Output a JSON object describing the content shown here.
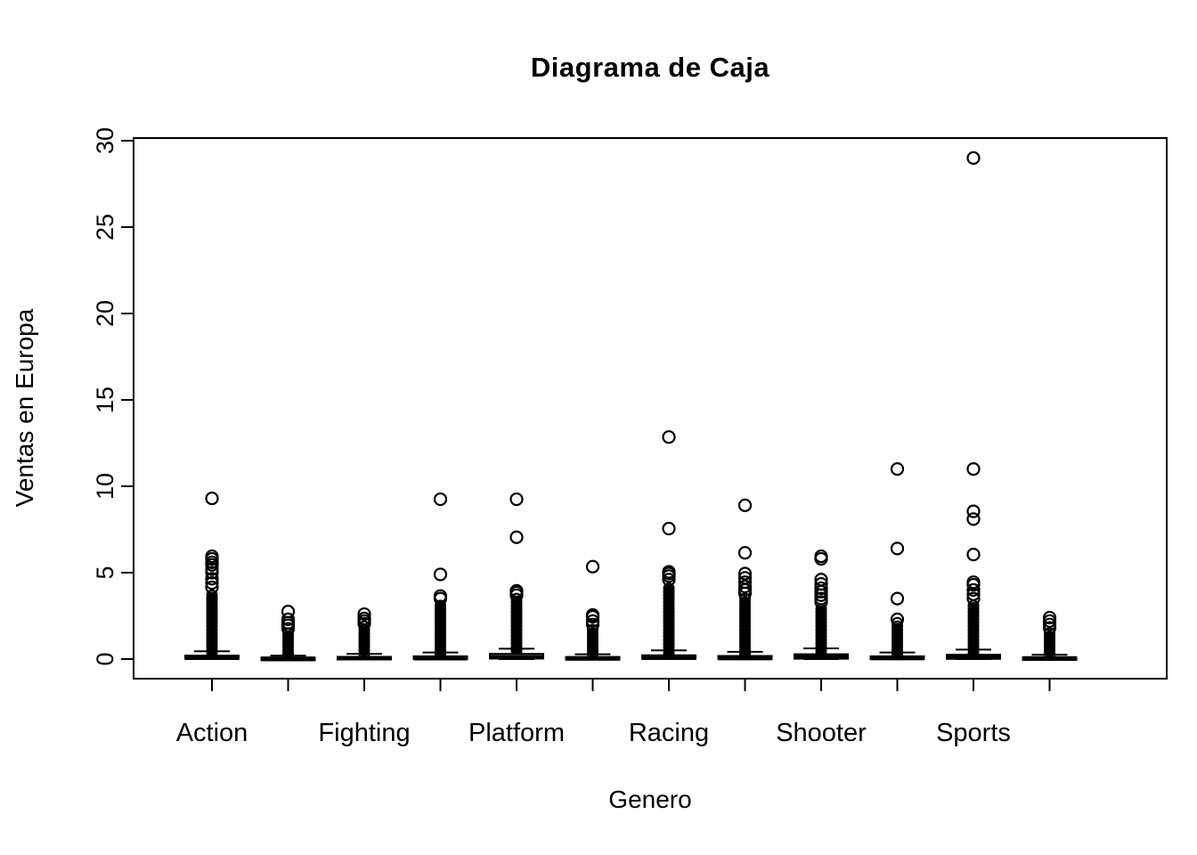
{
  "page": {
    "background_color": "#ffffff",
    "foreground_color": "#000000"
  },
  "chart_data": {
    "type": "boxplot",
    "title": "Diagrama de Caja",
    "xlabel": "Genero",
    "ylabel": "Ventas en Europa",
    "ylim": [
      0,
      30
    ],
    "yticks": [
      0,
      5,
      10,
      15,
      20,
      25,
      30
    ],
    "x_tick_labels_shown": [
      "Action",
      "Fighting",
      "Platform",
      "Racing",
      "Shooter",
      "Sports"
    ],
    "grid": false,
    "legend": "none",
    "boxes": [
      {
        "label": "Action",
        "q1": 0.02,
        "median": 0.08,
        "q3": 0.2,
        "whisker_low": 0,
        "whisker_high": 0.45,
        "dense_outlier_column_top": 3.9,
        "outliers": [
          4.15,
          4.4,
          4.65,
          5.0,
          5.2,
          5.45,
          5.6,
          5.8,
          5.95,
          9.3
        ]
      },
      {
        "label": "",
        "q1": 0.0,
        "median": 0.02,
        "q3": 0.08,
        "whisker_low": 0,
        "whisker_high": 0.2,
        "dense_outlier_column_top": 1.55,
        "outliers": [
          1.75,
          1.95,
          2.1,
          2.3,
          2.75
        ]
      },
      {
        "label": "Fighting",
        "q1": 0.02,
        "median": 0.05,
        "q3": 0.13,
        "whisker_low": 0,
        "whisker_high": 0.3,
        "dense_outlier_column_top": 1.9,
        "outliers": [
          2.05,
          2.2,
          2.35,
          2.6
        ]
      },
      {
        "label": "",
        "q1": 0.01,
        "median": 0.05,
        "q3": 0.16,
        "whisker_low": 0,
        "whisker_high": 0.38,
        "dense_outlier_column_top": 3.3,
        "outliers": [
          3.5,
          3.65,
          4.9,
          9.25
        ]
      },
      {
        "label": "Platform",
        "q1": 0.03,
        "median": 0.11,
        "q3": 0.3,
        "whisker_low": 0,
        "whisker_high": 0.6,
        "dense_outlier_column_top": 3.55,
        "outliers": [
          3.7,
          3.85,
          3.95,
          7.05,
          9.25
        ]
      },
      {
        "label": "",
        "q1": 0.01,
        "median": 0.04,
        "q3": 0.12,
        "whisker_low": 0,
        "whisker_high": 0.28,
        "dense_outlier_column_top": 1.8,
        "outliers": [
          2.0,
          2.2,
          2.45,
          2.55,
          5.35
        ]
      },
      {
        "label": "Racing",
        "q1": 0.02,
        "median": 0.08,
        "q3": 0.22,
        "whisker_low": 0,
        "whisker_high": 0.5,
        "dense_outlier_column_top": 4.3,
        "outliers": [
          4.6,
          4.8,
          4.95,
          5.05,
          7.55,
          12.85
        ]
      },
      {
        "label": "",
        "q1": 0.01,
        "median": 0.06,
        "q3": 0.18,
        "whisker_low": 0,
        "whisker_high": 0.42,
        "dense_outlier_column_top": 3.6,
        "outliers": [
          3.8,
          4.0,
          4.2,
          4.45,
          4.7,
          4.95,
          6.15,
          8.9
        ]
      },
      {
        "label": "Shooter",
        "q1": 0.02,
        "median": 0.1,
        "q3": 0.28,
        "whisker_low": 0,
        "whisker_high": 0.62,
        "dense_outlier_column_top": 3.1,
        "outliers": [
          3.3,
          3.5,
          3.7,
          3.9,
          4.1,
          4.35,
          4.6,
          5.8,
          5.95
        ]
      },
      {
        "label": "",
        "q1": 0.01,
        "median": 0.06,
        "q3": 0.16,
        "whisker_low": 0,
        "whisker_high": 0.38,
        "dense_outlier_column_top": 2.1,
        "outliers": [
          2.3,
          3.5,
          6.4,
          11.0
        ]
      },
      {
        "label": "Sports",
        "q1": 0.02,
        "median": 0.09,
        "q3": 0.25,
        "whisker_low": 0,
        "whisker_high": 0.55,
        "dense_outlier_column_top": 3.3,
        "outliers": [
          3.5,
          3.75,
          4.0,
          4.3,
          4.45,
          6.05,
          8.1,
          8.55,
          11.0,
          29.0
        ]
      },
      {
        "label": "",
        "q1": 0.01,
        "median": 0.04,
        "q3": 0.1,
        "whisker_low": 0,
        "whisker_high": 0.25,
        "dense_outlier_column_top": 1.6,
        "outliers": [
          1.8,
          2.0,
          2.2,
          2.4
        ]
      }
    ]
  }
}
